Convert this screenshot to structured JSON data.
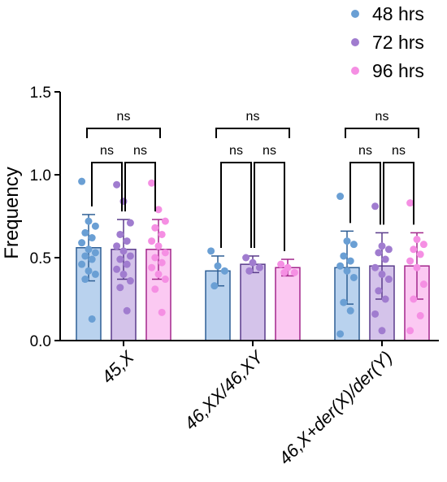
{
  "chart_data": {
    "type": "bar",
    "ylabel": "Frequency",
    "ylim": [
      0,
      1.5
    ],
    "yticks": [
      "0.0",
      "0.5",
      "1.0",
      "1.5"
    ],
    "categories": [
      "45,X",
      "46,XX/46,XY",
      "46,X+der(X)/der(Y)"
    ],
    "series": [
      {
        "name": "48 hrs",
        "color": "#6a9fd4",
        "fill": "#b9d2ee",
        "stroke": "#2e5f95",
        "values": [
          0.56,
          0.42,
          0.44
        ],
        "errors": [
          0.2,
          0.09,
          0.22
        ],
        "points": [
          [
            0.96,
            0.72,
            0.69,
            0.65,
            0.62,
            0.59,
            0.55,
            0.53,
            0.51,
            0.49,
            0.46,
            0.42,
            0.4,
            0.37,
            0.13
          ],
          [
            0.54,
            0.45,
            0.42,
            0.33
          ],
          [
            0.87,
            0.6,
            0.58,
            0.51,
            0.48,
            0.45,
            0.42,
            0.38,
            0.23,
            0.18,
            0.04
          ]
        ]
      },
      {
        "name": "72 hrs",
        "color": "#a07ccf",
        "fill": "#d4c3ea",
        "stroke": "#5a3b8b",
        "values": [
          0.55,
          0.46,
          0.45
        ],
        "errors": [
          0.18,
          0.05,
          0.2
        ],
        "points": [
          [
            0.94,
            0.84,
            0.71,
            0.64,
            0.6,
            0.57,
            0.54,
            0.51,
            0.49,
            0.46,
            0.43,
            0.4,
            0.36,
            0.32,
            0.18
          ],
          [
            0.5,
            0.47,
            0.44,
            0.42
          ],
          [
            0.81,
            0.57,
            0.55,
            0.53,
            0.49,
            0.44,
            0.4,
            0.37,
            0.3,
            0.25,
            0.16,
            0.06
          ]
        ]
      },
      {
        "name": "96 hrs",
        "color": "#f58fe3",
        "fill": "#fbc9f2",
        "stroke": "#a3278c",
        "values": [
          0.55,
          0.44,
          0.45
        ],
        "errors": [
          0.18,
          0.05,
          0.2
        ],
        "points": [
          [
            0.95,
            0.79,
            0.72,
            0.68,
            0.64,
            0.6,
            0.57,
            0.53,
            0.5,
            0.47,
            0.44,
            0.4,
            0.37,
            0.31,
            0.17
          ],
          [
            0.46,
            0.44,
            0.41,
            0.41
          ],
          [
            0.83,
            0.61,
            0.58,
            0.55,
            0.52,
            0.48,
            0.44,
            0.34,
            0.25,
            0.15,
            0.06
          ]
        ]
      }
    ],
    "significance": [
      {
        "group": 0,
        "pairs": [
          [
            "48 hrs",
            "72 hrs"
          ],
          [
            "72 hrs",
            "96 hrs"
          ],
          [
            "48 hrs",
            "96 hrs"
          ]
        ],
        "labels": [
          "ns",
          "ns",
          "ns"
        ]
      },
      {
        "group": 1,
        "pairs": [
          [
            "48 hrs",
            "72 hrs"
          ],
          [
            "72 hrs",
            "96 hrs"
          ],
          [
            "48 hrs",
            "96 hrs"
          ]
        ],
        "labels": [
          "ns",
          "ns",
          "ns"
        ]
      },
      {
        "group": 2,
        "pairs": [
          [
            "48 hrs",
            "72 hrs"
          ],
          [
            "72 hrs",
            "96 hrs"
          ],
          [
            "48 hrs",
            "96 hrs"
          ]
        ],
        "labels": [
          "ns",
          "ns",
          "ns"
        ]
      }
    ],
    "legend_position": "top-right",
    "grid": false
  }
}
